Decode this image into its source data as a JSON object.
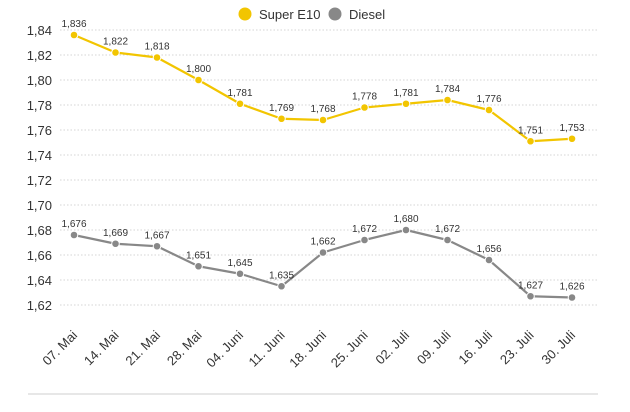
{
  "chart_data": {
    "type": "line",
    "title": "",
    "xlabel": "",
    "ylabel": "",
    "categories": [
      "07. Mai",
      "14. Mai",
      "21. Mai",
      "28. Mai",
      "04. Juni",
      "11. Juni",
      "18. Juni",
      "25. Juni",
      "02. Juli",
      "09. Juli",
      "16. Juli",
      "23. Juli",
      "30. Juli"
    ],
    "ylim": [
      1.61,
      1.84
    ],
    "yticks": [
      "1,84",
      "1,82",
      "1,80",
      "1,78",
      "1,76",
      "1,74",
      "1,72",
      "1,70",
      "1,68",
      "1,66",
      "1,64",
      "1,62"
    ],
    "ytick_values": [
      1.84,
      1.82,
      1.8,
      1.78,
      1.76,
      1.74,
      1.72,
      1.7,
      1.68,
      1.66,
      1.64,
      1.62
    ],
    "grid": true,
    "legend_position": "top-center",
    "series": [
      {
        "name": "Super E10",
        "color": "#f2c500",
        "values": [
          1.836,
          1.822,
          1.818,
          1.8,
          1.781,
          1.769,
          1.768,
          1.778,
          1.781,
          1.784,
          1.776,
          1.751,
          1.753
        ],
        "labels": [
          "1,836",
          "1,822",
          "1,818",
          "1,800",
          "1,781",
          "1,769",
          "1,768",
          "1,778",
          "1,781",
          "1,784",
          "1,776",
          "1,751",
          "1,753"
        ]
      },
      {
        "name": "Diesel",
        "color": "#888888",
        "values": [
          1.676,
          1.669,
          1.667,
          1.651,
          1.645,
          1.635,
          1.662,
          1.672,
          1.68,
          1.672,
          1.656,
          1.627,
          1.626
        ],
        "labels": [
          "1,676",
          "1,669",
          "1,667",
          "1,651",
          "1,645",
          "1,635",
          "1,662",
          "1,672",
          "1,680",
          "1,672",
          "1,656",
          "1,627",
          "1,626"
        ]
      }
    ]
  }
}
